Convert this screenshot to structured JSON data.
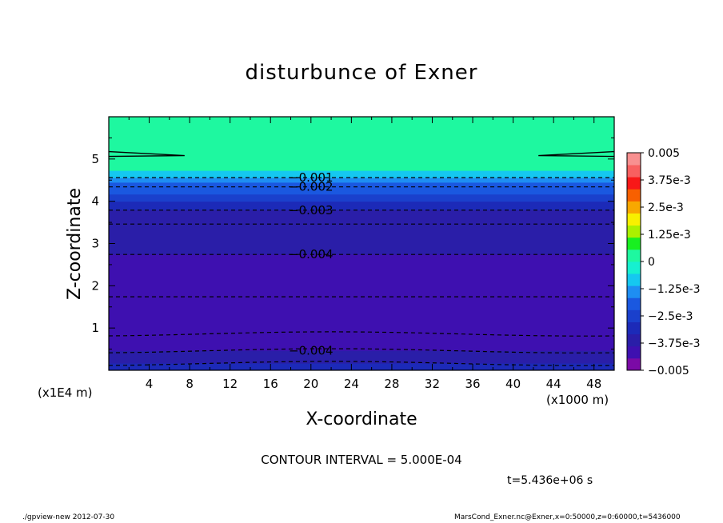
{
  "title": "disturbunce of Exner",
  "footer": {
    "left": "./gpview-new   2012-07-30",
    "right": "MarsCond_Exner.nc@Exner,x=0:50000,z=0:60000,t=5436000"
  },
  "contour_interval": "CONTOUR INTERVAL = 5.000E-04",
  "time_label": "t=5.436e+06 s",
  "colors": {
    "levels": [
      "#7b0aa6",
      "#3e10b0",
      "#2a1ea8",
      "#1c2ab8",
      "#1a40cc",
      "#1a58e0",
      "#1e8ef2",
      "#15c8f0",
      "#16f0d0",
      "#1ef8a0",
      "#18f020",
      "#aaf000",
      "#f8f000",
      "#f8a800",
      "#f86000",
      "#f81818",
      "#f86060",
      "#f89090"
    ],
    "contour": "#000000"
  },
  "chart_data": {
    "type": "contour",
    "title": "disturbunce of Exner",
    "xlabel": "X-coordinate",
    "ylabel": "Z-coordinate",
    "x_unit": "(x1000 m)",
    "z_unit": "(x1E4 m)",
    "xlim": [
      0,
      50
    ],
    "zlim": [
      0,
      6
    ],
    "x_ticks": [
      4,
      8,
      12,
      16,
      20,
      24,
      28,
      32,
      36,
      40,
      44,
      48
    ],
    "z_ticks": [
      1,
      2,
      3,
      4,
      5
    ],
    "colorbar": {
      "range": [
        -0.005,
        0.005
      ],
      "step": 0.000625,
      "labels": [
        "0.005",
        "3.75e-3",
        "2.5e-3",
        "1.25e-3",
        "0",
        "-1.25e-3",
        "-2.5e-3",
        "-3.75e-3",
        "-0.005"
      ]
    },
    "contour_labels": [
      {
        "text": "-0.001",
        "x": 20,
        "z": 4.56
      },
      {
        "text": "-0.002",
        "x": 20,
        "z": 4.34
      },
      {
        "text": "-0.003",
        "x": 20,
        "z": 3.79
      },
      {
        "text": "-0.004",
        "x": 20,
        "z": 2.74
      },
      {
        "text": "-0.004",
        "x": 20,
        "z": 0.46
      }
    ],
    "profile": [
      {
        "z_top": 6.0,
        "z_bot": 4.72,
        "value": 0.0001
      },
      {
        "z_top": 4.72,
        "z_bot": 4.55,
        "value": -0.0009
      },
      {
        "z_top": 4.55,
        "z_bot": 4.44,
        "value": -0.0014
      },
      {
        "z_top": 4.44,
        "z_bot": 4.34,
        "value": -0.0019
      },
      {
        "z_top": 4.34,
        "z_bot": 4.16,
        "value": -0.0024
      },
      {
        "z_top": 4.16,
        "z_bot": 3.99,
        "value": -0.0029
      },
      {
        "z_top": 3.99,
        "z_bot": 3.79,
        "value": -0.0034
      },
      {
        "z_top": 3.79,
        "z_bot": 3.46,
        "value": -0.0039
      },
      {
        "z_top": 3.46,
        "z_bot": 2.74,
        "value": -0.0041
      },
      {
        "z_top": 2.74,
        "z_bot": 2.26,
        "value": -0.0044
      },
      {
        "z_top": 2.26,
        "z_bot": 1.74,
        "value": -0.0046
      },
      {
        "z_top": 1.74,
        "z_bot": 1.3,
        "value": -0.0048
      },
      {
        "z_top": 1.3,
        "z_bot": 1.07,
        "value": -0.0049
      },
      {
        "z_top": 1.07,
        "z_bot": 0.86,
        "value": -0.0047
      },
      {
        "z_top": 0.86,
        "z_bot": 0.46,
        "value": -0.0044
      },
      {
        "z_top": 0.46,
        "z_bot": 0.16,
        "value": -0.0041
      },
      {
        "z_top": 0.16,
        "z_bot": 0.0,
        "value": -0.0037
      }
    ],
    "dashed_contours_z": [
      4.56,
      4.34,
      3.79,
      3.46,
      2.74,
      1.74,
      0.86,
      0.46,
      0.16
    ],
    "near_zero_contour": {
      "z": 5.1,
      "x_extent": 7.5
    }
  }
}
